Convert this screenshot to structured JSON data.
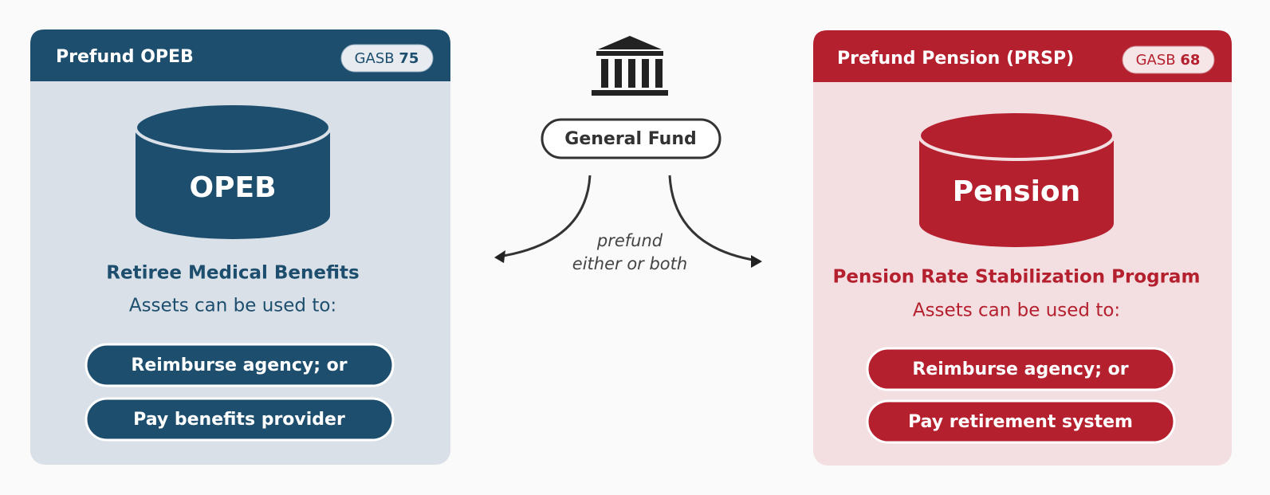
{
  "left": {
    "title": "Prefund OPEB",
    "badge": {
      "prefix": "GASB",
      "number": "75"
    },
    "drum": "OPEB",
    "subtitle": "Retiree Medical Benefits",
    "intro": "Assets can be used to:",
    "uses": [
      "Reimburse agency; or",
      "Pay benefits provider"
    ]
  },
  "center": {
    "label": "General Fund",
    "note": [
      "prefund",
      "either or both"
    ]
  },
  "right": {
    "title": "Prefund Pension (PRSP)",
    "badge": {
      "prefix": "GASB",
      "number": "68"
    },
    "drum": "Pension",
    "subtitle": "Pension Rate Stabilization Program",
    "intro": "Assets can be used to:",
    "uses": [
      "Reimburse agency; or",
      "Pay retirement system"
    ]
  }
}
